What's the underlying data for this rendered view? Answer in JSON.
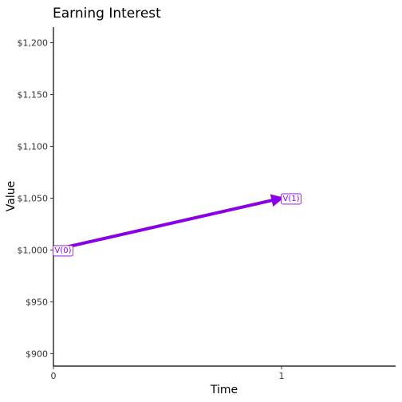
{
  "chart_data": {
    "type": "line",
    "title": "Earning Interest",
    "xlabel": "Time",
    "ylabel": "Value",
    "xlim": [
      0,
      1.5
    ],
    "ylim": [
      888,
      1215
    ],
    "x_ticks": [
      0,
      1
    ],
    "x_tick_labels": [
      "0",
      "1"
    ],
    "y_ticks": [
      900,
      950,
      1000,
      1050,
      1100,
      1150,
      1200
    ],
    "y_tick_labels": [
      "$900",
      "$950",
      "$1,000",
      "$1,050",
      "$1,100",
      "$1,150",
      "$1,200"
    ],
    "grid": false,
    "series": [
      {
        "x": [
          0,
          1
        ],
        "values": [
          1000,
          1050
        ],
        "point_labels": [
          "V(0)",
          "V(1)"
        ],
        "color": "#8a00e6",
        "arrow": true
      }
    ]
  }
}
